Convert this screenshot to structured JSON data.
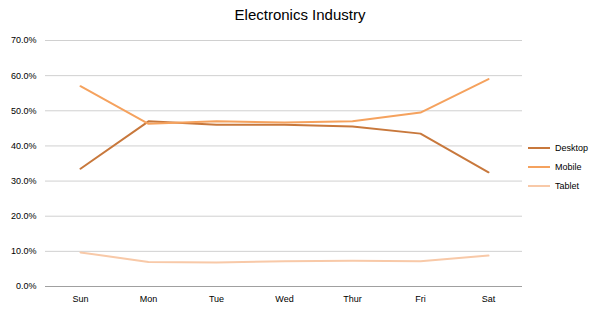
{
  "chart_data": {
    "type": "line",
    "title": "Electronics Industry",
    "categories": [
      "Sun",
      "Mon",
      "Tue",
      "Wed",
      "Thur",
      "Fri",
      "Sat"
    ],
    "series": [
      {
        "name": "Desktop",
        "color": "#c8783c",
        "values": [
          33.5,
          47.0,
          46.0,
          46.0,
          45.5,
          43.5,
          32.5
        ]
      },
      {
        "name": "Mobile",
        "color": "#f5a25e",
        "values": [
          57.0,
          46.3,
          47.0,
          46.7,
          47.0,
          49.5,
          59.0
        ]
      },
      {
        "name": "Tablet",
        "color": "#f8c9a8",
        "values": [
          9.7,
          7.0,
          6.8,
          7.2,
          7.3,
          7.2,
          8.8
        ]
      }
    ],
    "ylim": [
      0,
      70
    ],
    "yticks": [
      {
        "value": 0,
        "label": "0.0%"
      },
      {
        "value": 10,
        "label": "10.0%"
      },
      {
        "value": 20,
        "label": "20.0%"
      },
      {
        "value": 30,
        "label": "30.0%"
      },
      {
        "value": 40,
        "label": "40.0%"
      },
      {
        "value": 50,
        "label": "50.0%"
      },
      {
        "value": 60,
        "label": "60.0%"
      },
      {
        "value": 70,
        "label": "70.0%"
      }
    ],
    "grid": true,
    "legend": "right"
  }
}
